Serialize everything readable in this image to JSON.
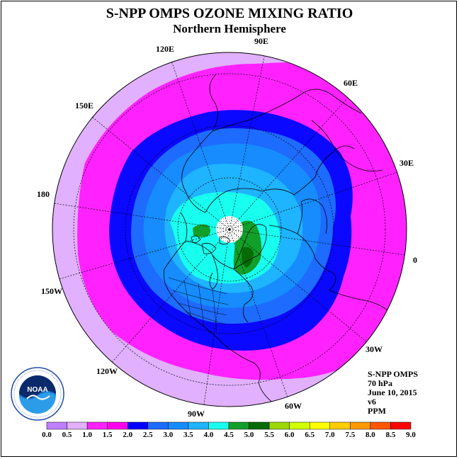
{
  "title": "S-NPP OMPS OZONE MIXING RATIO",
  "subtitle": "Northern Hemisphere",
  "longitude_labels": {
    "lon_90e": "90E",
    "lon_60e": "60E",
    "lon_30e": "30E",
    "lon_0": "0",
    "lon_30w": "30W",
    "lon_60w": "60W",
    "lon_90w": "90W",
    "lon_120w": "120W",
    "lon_150w": "150W",
    "lon_180": "180",
    "lon_150e": "150E",
    "lon_120e": "120E"
  },
  "info": {
    "instrument": "S-NPP OMPS",
    "pressure": "70 hPa",
    "date": "June 10, 2015",
    "version": "v6",
    "units": "PPM"
  },
  "logo_text": "NOAA",
  "colorbar": {
    "labels": [
      "0.0",
      "0.5",
      "1.0",
      "1.5",
      "2.0",
      "2.5",
      "3.0",
      "3.5",
      "4.0",
      "4.5",
      "5.0",
      "5.5",
      "6.0",
      "6.5",
      "7.0",
      "7.5",
      "8.0",
      "8.5",
      "9.0"
    ],
    "colors": [
      "#bf7fff",
      "#e1b0ff",
      "#ff22ff",
      "#ff00ee",
      "#0000ff",
      "#1e6bff",
      "#168cff",
      "#1eb4ff",
      "#18fff0",
      "#119f2a",
      "#056b05",
      "#9cd700",
      "#d1ff00",
      "#ffff00",
      "#ffcc00",
      "#ff9900",
      "#ff5500",
      "#ff0000",
      "#8b4513"
    ]
  },
  "colors": {
    "level_0_5_1_0": "#e1b0ff",
    "level_1_0_1_5": "#ff22ff",
    "level_1_5_2_0": "#0a08ff",
    "level_2_0_2_5": "#1e6bff",
    "level_2_5_3_0": "#168cff",
    "level_3_0_3_5": "#1eb4ff",
    "level_3_5_4_0": "#18fff0",
    "level_4_0_4_5": "#119f2a",
    "level_4_5_5_0": "#056b05"
  }
}
